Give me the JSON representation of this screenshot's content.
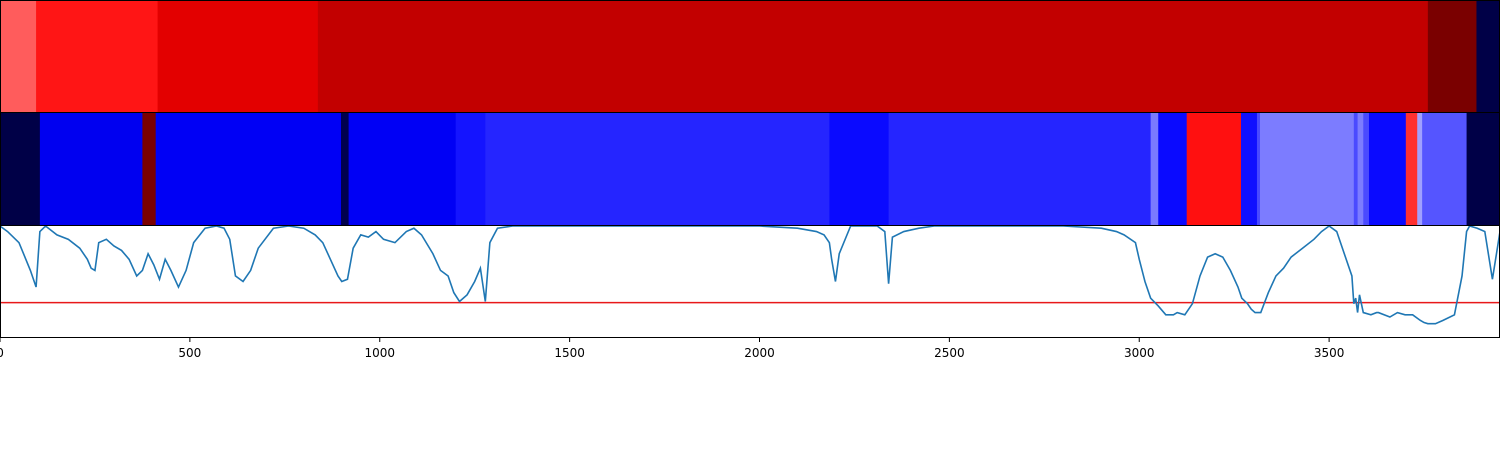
{
  "chart_data": {
    "type": "heatmap",
    "xlim": [
      0,
      3950
    ],
    "x_ticks": [
      "0",
      "500",
      "1000",
      "1500",
      "2000",
      "2500",
      "3000",
      "3500"
    ],
    "track1": {
      "segments": [
        {
          "start": 0,
          "end": 95,
          "color": "#ff5c5c"
        },
        {
          "start": 95,
          "end": 415,
          "color": "#ff1515"
        },
        {
          "start": 415,
          "end": 837,
          "color": "#e30000"
        },
        {
          "start": 837,
          "end": 3760,
          "color": "#c20000"
        },
        {
          "start": 3760,
          "end": 3888,
          "color": "#7a0000"
        },
        {
          "start": 3888,
          "end": 3950,
          "color": "#000047"
        }
      ]
    },
    "track2": {
      "segments": [
        {
          "start": 0,
          "end": 105,
          "color": "#000047"
        },
        {
          "start": 105,
          "end": 375,
          "color": "#0000f0"
        },
        {
          "start": 375,
          "end": 410,
          "color": "#7a0000"
        },
        {
          "start": 410,
          "end": 898,
          "color": "#0000f5"
        },
        {
          "start": 898,
          "end": 918,
          "color": "#00004d"
        },
        {
          "start": 918,
          "end": 1200,
          "color": "#0000f5"
        },
        {
          "start": 1200,
          "end": 1278,
          "color": "#1414ff"
        },
        {
          "start": 1278,
          "end": 2184,
          "color": "#2525ff"
        },
        {
          "start": 2184,
          "end": 2340,
          "color": "#0a0aff"
        },
        {
          "start": 2340,
          "end": 3030,
          "color": "#2525ff"
        },
        {
          "start": 3030,
          "end": 3050,
          "color": "#7a7aff"
        },
        {
          "start": 3050,
          "end": 3125,
          "color": "#0a0aff"
        },
        {
          "start": 3125,
          "end": 3268,
          "color": "#ff1010"
        },
        {
          "start": 3268,
          "end": 3310,
          "color": "#1010ff"
        },
        {
          "start": 3310,
          "end": 3318,
          "color": "#4a4aff"
        },
        {
          "start": 3318,
          "end": 3565,
          "color": "#7c7cff"
        },
        {
          "start": 3565,
          "end": 3575,
          "color": "#4a4aff"
        },
        {
          "start": 3575,
          "end": 3590,
          "color": "#7c7cff"
        },
        {
          "start": 3590,
          "end": 3605,
          "color": "#4a4aff"
        },
        {
          "start": 3605,
          "end": 3702,
          "color": "#0a0aff"
        },
        {
          "start": 3702,
          "end": 3732,
          "color": "#ff3030"
        },
        {
          "start": 3732,
          "end": 3745,
          "color": "#a0a0ff"
        },
        {
          "start": 3745,
          "end": 3862,
          "color": "#5555ff"
        },
        {
          "start": 3862,
          "end": 3950,
          "color": "#000047"
        }
      ]
    },
    "line_panel": {
      "ylim": [
        0,
        1
      ],
      "threshold": 0.31,
      "line_color": "#1f77b4",
      "threshold_color": "#e8191a",
      "x": [
        0,
        20,
        50,
        80,
        95,
        105,
        120,
        150,
        180,
        210,
        230,
        240,
        250,
        260,
        280,
        300,
        320,
        340,
        360,
        375,
        390,
        405,
        420,
        435,
        450,
        470,
        490,
        510,
        540,
        570,
        590,
        605,
        620,
        640,
        660,
        680,
        720,
        760,
        800,
        830,
        850,
        870,
        890,
        900,
        915,
        930,
        950,
        970,
        990,
        1010,
        1040,
        1070,
        1090,
        1110,
        1140,
        1160,
        1180,
        1195,
        1210,
        1230,
        1250,
        1265,
        1278,
        1290,
        1310,
        1350,
        1400,
        1500,
        1600,
        1700,
        1800,
        1900,
        2000,
        2100,
        2150,
        2170,
        2184,
        2190,
        2200,
        2210,
        2240,
        2290,
        2310,
        2330,
        2340,
        2350,
        2380,
        2420,
        2460,
        2500,
        2600,
        2700,
        2800,
        2900,
        2940,
        2960,
        2990,
        3000,
        3015,
        3030,
        3050,
        3070,
        3090,
        3100,
        3120,
        3140,
        3160,
        3180,
        3200,
        3220,
        3240,
        3260,
        3270,
        3285,
        3295,
        3305,
        3320,
        3340,
        3360,
        3380,
        3400,
        3430,
        3460,
        3480,
        3500,
        3520,
        3540,
        3560,
        3565,
        3570,
        3575,
        3580,
        3590,
        3610,
        3625,
        3630,
        3660,
        3680,
        3700,
        3720,
        3740,
        3750,
        3760,
        3780,
        3800,
        3830,
        3850,
        3862,
        3870,
        3890,
        3910,
        3930,
        3950
      ],
      "y": [
        1.0,
        0.95,
        0.85,
        0.6,
        0.45,
        0.95,
        1.0,
        0.92,
        0.88,
        0.8,
        0.7,
        0.62,
        0.6,
        0.85,
        0.88,
        0.82,
        0.78,
        0.7,
        0.55,
        0.6,
        0.75,
        0.65,
        0.52,
        0.7,
        0.6,
        0.45,
        0.6,
        0.85,
        0.98,
        1.0,
        0.98,
        0.88,
        0.55,
        0.5,
        0.6,
        0.8,
        0.98,
        1.0,
        0.98,
        0.92,
        0.85,
        0.7,
        0.55,
        0.5,
        0.52,
        0.8,
        0.92,
        0.9,
        0.95,
        0.88,
        0.85,
        0.95,
        0.98,
        0.92,
        0.75,
        0.6,
        0.55,
        0.4,
        0.32,
        0.38,
        0.5,
        0.62,
        0.32,
        0.85,
        0.98,
        1.0,
        1.0,
        1.0,
        1.0,
        1.0,
        1.0,
        1.0,
        1.0,
        0.98,
        0.95,
        0.92,
        0.85,
        0.7,
        0.5,
        0.75,
        1.0,
        1.0,
        1.0,
        0.95,
        0.48,
        0.9,
        0.95,
        0.98,
        1.0,
        1.0,
        1.0,
        1.0,
        1.0,
        0.98,
        0.95,
        0.92,
        0.85,
        0.7,
        0.5,
        0.35,
        0.28,
        0.2,
        0.2,
        0.22,
        0.2,
        0.3,
        0.55,
        0.72,
        0.75,
        0.72,
        0.6,
        0.45,
        0.35,
        0.3,
        0.25,
        0.22,
        0.22,
        0.4,
        0.55,
        0.62,
        0.72,
        0.8,
        0.88,
        0.95,
        1.0,
        0.95,
        0.75,
        0.55,
        0.3,
        0.35,
        0.22,
        0.38,
        0.22,
        0.2,
        0.22,
        0.22,
        0.18,
        0.22,
        0.2,
        0.2,
        0.15,
        0.13,
        0.12,
        0.12,
        0.15,
        0.2,
        0.55,
        0.95,
        1.0,
        0.98,
        0.95,
        0.52,
        0.95,
        1.0,
        1.0,
        1.0
      ]
    }
  }
}
